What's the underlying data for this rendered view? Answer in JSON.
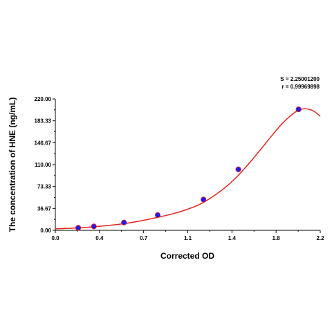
{
  "chart_data": {
    "type": "scatter",
    "title": "",
    "xlabel": "Corrected OD",
    "ylabel": "The concentration of HNE (ng/mL)",
    "xlim": [
      0.0,
      2.2
    ],
    "ylim": [
      0.0,
      220.0
    ],
    "x_ticks": [
      "0.0",
      "0.4",
      "0.7",
      "1.1",
      "1.4",
      "1.8",
      "2.2"
    ],
    "y_ticks": [
      "0.00",
      "36.67",
      "73.33",
      "110.00",
      "146.67",
      "183.33",
      "220.00"
    ],
    "grid": false,
    "legend": "none",
    "stats": {
      "s": "S = 2.25001200",
      "r": "r = 0.99969898"
    },
    "points": [
      {
        "x": 0.19,
        "y": 4.2
      },
      {
        "x": 0.32,
        "y": 6.5
      },
      {
        "x": 0.57,
        "y": 13.0
      },
      {
        "x": 0.85,
        "y": 25.5
      },
      {
        "x": 1.23,
        "y": 51.5
      },
      {
        "x": 1.52,
        "y": 102.0
      },
      {
        "x": 2.02,
        "y": 202.5
      }
    ],
    "fit_curve": {
      "x": [
        0.0,
        0.2,
        0.4,
        0.6,
        0.8,
        1.0,
        1.1,
        1.2,
        1.3,
        1.4,
        1.5,
        1.6,
        1.7,
        1.8,
        1.9,
        2.0,
        2.05,
        2.1,
        2.15,
        2.2
      ],
      "y": [
        2.5,
        4.2,
        7.4,
        12.0,
        19.5,
        29.0,
        35.5,
        43.5,
        55.5,
        70.0,
        88.0,
        110.0,
        134.0,
        159.0,
        182.0,
        199.0,
        203.0,
        203.0,
        199.0,
        191.0
      ]
    },
    "colors": {
      "curve": "#e8231e",
      "point_fill": "#1a1aff",
      "point_edge": "#cc2222",
      "axis": "#000000"
    }
  }
}
